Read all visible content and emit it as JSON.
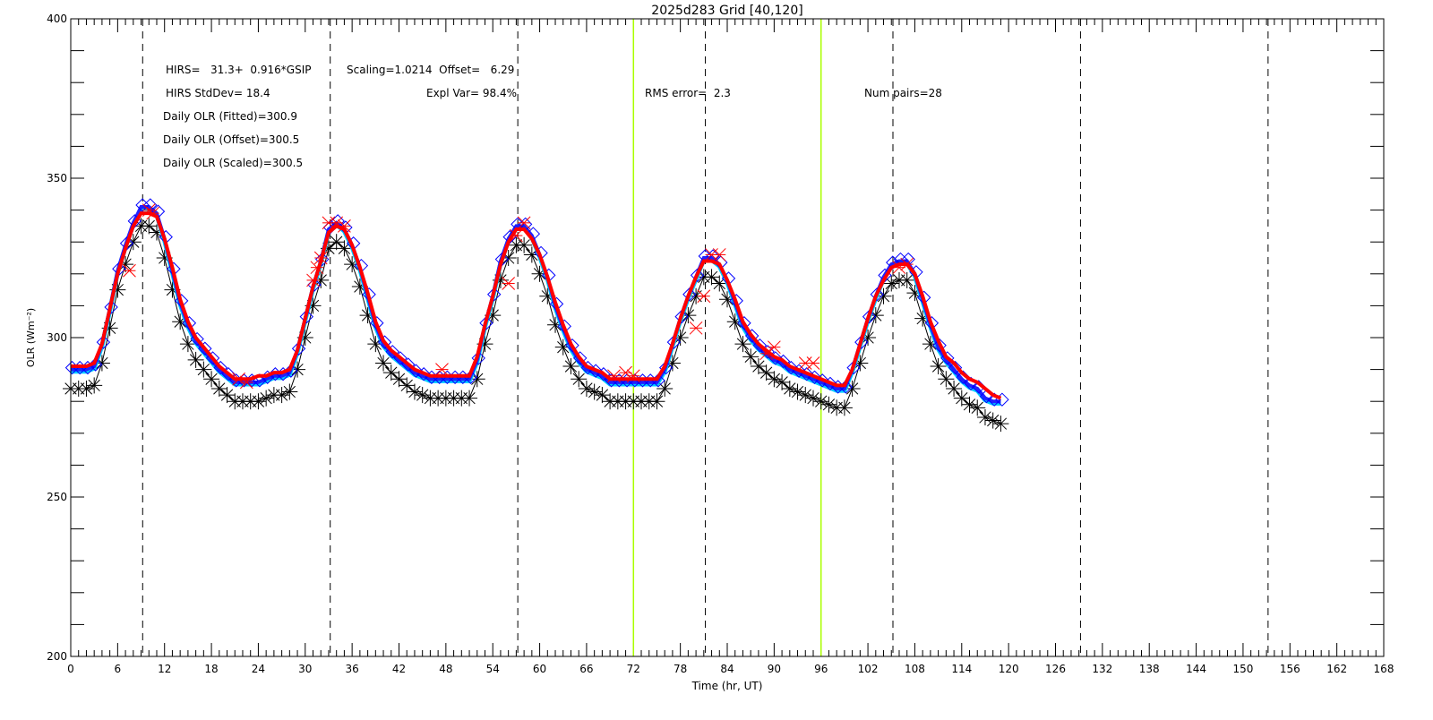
{
  "chart_data": {
    "type": "line",
    "title": "2025d283 Grid [40,120]",
    "xlabel": "Time (hr, UT)",
    "ylabel": "OLR (Wm⁻²)",
    "xlim": [
      0,
      168
    ],
    "ylim": [
      200,
      400
    ],
    "xticks": [
      0,
      6,
      12,
      18,
      24,
      30,
      36,
      42,
      48,
      54,
      60,
      66,
      72,
      78,
      84,
      90,
      96,
      102,
      108,
      114,
      120,
      126,
      132,
      138,
      144,
      150,
      156,
      162,
      168
    ],
    "yticks": [
      200,
      250,
      300,
      350,
      400
    ],
    "dashed_vlines": [
      9.2,
      33.2,
      57.2,
      81.2,
      105.2,
      129.2,
      153.2
    ],
    "green_vlines": [
      72,
      96
    ],
    "annotations": {
      "regression": "HIRS=   31.3+  0.916*GSIP",
      "scaling": "Scaling=1.0214  Offset=   6.29",
      "stddev": "HIRS StdDev= 18.4",
      "expl_var": "Expl Var= 98.4%",
      "rms": "RMS error=  2.3",
      "num_pairs": "Num pairs=28",
      "daily_fitted": "Daily OLR (Fitted)=300.9",
      "daily_offset": "Daily OLR (Offset)=300.5",
      "daily_scaled": "Daily OLR (Scaled)=300.5"
    },
    "series": [
      {
        "name": "GSIP",
        "color": "#000000",
        "marker": "asterisk",
        "values": [
          284,
          284,
          284,
          285,
          292,
          303,
          315,
          323,
          330,
          335,
          335,
          333,
          325,
          315,
          305,
          298,
          293,
          290,
          287,
          284,
          282,
          280,
          280,
          280,
          280,
          281,
          282,
          282,
          283,
          290,
          300,
          310,
          318,
          328,
          330,
          328,
          323,
          316,
          307,
          298,
          292,
          289,
          287,
          285,
          283,
          282,
          281,
          281,
          281,
          281,
          281,
          281,
          287,
          298,
          307,
          318,
          325,
          329,
          329,
          326,
          320,
          313,
          304,
          297,
          291,
          287,
          284,
          283,
          282,
          280,
          280,
          280,
          280,
          280,
          280,
          280,
          284,
          292,
          300,
          307,
          313,
          319,
          319,
          317,
          312,
          305,
          298,
          294,
          291,
          289,
          287,
          286,
          284,
          283,
          282,
          281,
          280,
          279,
          278,
          278,
          284,
          292,
          300,
          307,
          313,
          317,
          318,
          318,
          314,
          306,
          298,
          291,
          287,
          284,
          281,
          279,
          278,
          275,
          274,
          273
        ]
      },
      {
        "name": "Offset",
        "color": "#0000ff",
        "marker": "diamond",
        "values": [
          290,
          290,
          290,
          291,
          298,
          309,
          321,
          329,
          336,
          341,
          341,
          339,
          331,
          321,
          311,
          304,
          299,
          296,
          293,
          290,
          288,
          286,
          286,
          286,
          286,
          287,
          288,
          288,
          289,
          296,
          306,
          316,
          324,
          334,
          336,
          334,
          329,
          322,
          313,
          304,
          298,
          295,
          293,
          291,
          289,
          288,
          287,
          287,
          287,
          287,
          287,
          287,
          293,
          304,
          313,
          324,
          331,
          335,
          335,
          332,
          326,
          319,
          310,
          303,
          297,
          293,
          290,
          289,
          288,
          286,
          286,
          286,
          286,
          286,
          286,
          286,
          290,
          298,
          306,
          313,
          319,
          325,
          325,
          323,
          318,
          311,
          304,
          300,
          297,
          295,
          293,
          292,
          290,
          289,
          288,
          287,
          286,
          285,
          284,
          284,
          290,
          298,
          306,
          313,
          319,
          323,
          324,
          324,
          320,
          312,
          304,
          297,
          293,
          290,
          287,
          285,
          284,
          281,
          280,
          280
        ]
      },
      {
        "name": "Fitted",
        "color": "#ff0000",
        "marker": "none",
        "values": [
          291,
          291,
          291,
          292,
          298,
          309,
          320,
          328,
          335,
          339,
          339,
          338,
          331,
          322,
          312,
          305,
          300,
          297,
          294,
          291,
          289,
          287,
          287,
          287,
          288,
          288,
          289,
          289,
          290,
          296,
          306,
          316,
          324,
          333,
          335,
          334,
          329,
          322,
          314,
          305,
          299,
          296,
          294,
          292,
          290,
          289,
          288,
          288,
          288,
          288,
          288,
          288,
          294,
          304,
          313,
          323,
          330,
          334,
          334,
          331,
          326,
          319,
          311,
          304,
          298,
          294,
          291,
          290,
          289,
          287,
          287,
          287,
          287,
          287,
          287,
          287,
          291,
          298,
          306,
          313,
          319,
          324,
          324,
          323,
          318,
          312,
          305,
          301,
          298,
          296,
          294,
          293,
          291,
          290,
          289,
          288,
          287,
          286,
          285,
          285,
          290,
          298,
          306,
          313,
          318,
          322,
          323,
          323,
          320,
          313,
          305,
          299,
          294,
          292,
          289,
          287,
          286,
          284,
          282,
          281
        ]
      },
      {
        "name": "HIRS",
        "color": "#ff0000",
        "marker": "x",
        "points": [
          [
            7.5,
            321
          ],
          [
            10,
            340
          ],
          [
            10.5,
            339
          ],
          [
            21.5,
            287
          ],
          [
            22.5,
            286
          ],
          [
            31,
            318
          ],
          [
            31.5,
            322
          ],
          [
            32,
            325
          ],
          [
            33,
            336
          ],
          [
            34,
            336
          ],
          [
            35,
            335
          ],
          [
            47.5,
            290
          ],
          [
            56,
            317
          ],
          [
            57,
            332
          ],
          [
            58,
            336
          ],
          [
            69.5,
            288
          ],
          [
            71,
            289
          ],
          [
            72,
            288
          ],
          [
            80,
            303
          ],
          [
            81,
            313
          ],
          [
            82,
            326
          ],
          [
            83,
            326
          ],
          [
            89,
            295
          ],
          [
            90,
            297
          ],
          [
            94,
            292
          ],
          [
            95,
            292
          ],
          [
            106,
            322
          ],
          [
            107,
            323
          ]
        ]
      }
    ]
  }
}
